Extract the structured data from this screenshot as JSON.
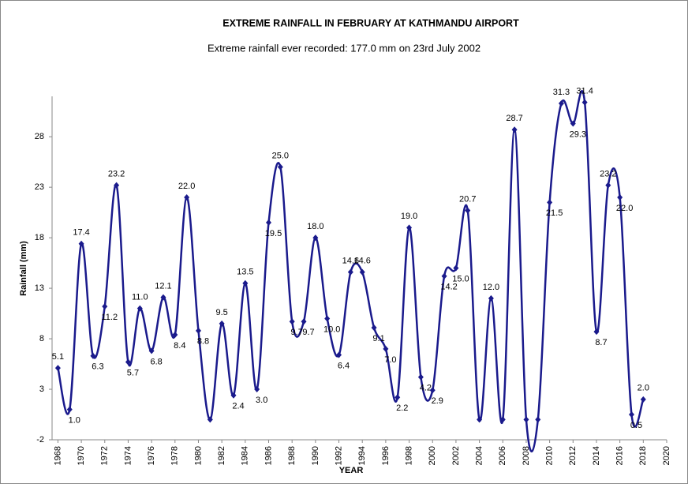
{
  "chart_data": {
    "type": "line",
    "title": "EXTREME RAINFALL IN FEBRUARY AT KATHMANDU AIRPORT",
    "subtitle": "Extreme rainfall ever recorded: 177.0 mm on 23rd July 2002",
    "x_label": "YEAR",
    "y_label": "Rainfall (mm)",
    "x": [
      1968,
      1969,
      1970,
      1971,
      1972,
      1973,
      1974,
      1975,
      1976,
      1977,
      1978,
      1979,
      1980,
      1981,
      1982,
      1983,
      1984,
      1985,
      1986,
      1987,
      1988,
      1989,
      1990,
      1991,
      1992,
      1993,
      1994,
      1995,
      1996,
      1997,
      1998,
      1999,
      2000,
      2001,
      2002,
      2003,
      2004,
      2005,
      2006,
      2007,
      2008,
      2009,
      2010,
      2011,
      2012,
      2013,
      2014,
      2015,
      2016,
      2017,
      2018
    ],
    "series": [
      {
        "name": "Rainfall",
        "color": "#1a1a8c",
        "values": [
          5.1,
          1.0,
          17.4,
          6.3,
          11.2,
          23.2,
          5.7,
          11.0,
          6.8,
          12.1,
          8.4,
          22.0,
          8.8,
          0,
          9.5,
          2.4,
          13.5,
          3.0,
          19.5,
          25.0,
          9.7,
          9.7,
          18.0,
          10.0,
          6.4,
          14.6,
          14.6,
          9.1,
          7.0,
          2.2,
          19.0,
          4.2,
          2.9,
          14.2,
          15.0,
          20.7,
          0,
          12.0,
          0,
          28.7,
          0,
          0,
          21.5,
          31.3,
          29.3,
          31.4,
          8.7,
          23.2,
          22.0,
          0.5,
          2.0
        ],
        "value_labels": [
          "5.1",
          "1.0",
          "17.4",
          "6.3",
          "11.2",
          "23.2",
          "5.7",
          "11.0",
          "6.8",
          "12.1",
          "8.4",
          "22.0",
          "8.8",
          null,
          "9.5",
          "2.4",
          "13.5",
          "3.0",
          "19.5",
          "25.0",
          "9.7",
          "9.7",
          "18.0",
          "10.0",
          "6.4",
          "14.6",
          "14.6",
          "9.1",
          "7.0",
          "2.2",
          "19.0",
          "4.2",
          "2.9",
          "14.2",
          "15.0",
          "20.7",
          null,
          "12.0",
          null,
          "28.7",
          null,
          null,
          "21.5",
          "31.3",
          "29.3",
          "31.4",
          "8.7",
          "23.2",
          "22.0",
          "0.5",
          "2.0"
        ]
      }
    ],
    "xlim": [
      1967.5,
      2020
    ],
    "xticks": [
      1968,
      1970,
      1972,
      1974,
      1976,
      1978,
      1980,
      1982,
      1984,
      1986,
      1988,
      1990,
      1992,
      1994,
      1996,
      1998,
      2000,
      2002,
      2004,
      2006,
      2008,
      2010,
      2012,
      2014,
      2016,
      2018,
      2020
    ],
    "ylim": [
      -2,
      32
    ],
    "yticks": [
      -2,
      3,
      8,
      13,
      18,
      23,
      28
    ],
    "grid": false
  }
}
